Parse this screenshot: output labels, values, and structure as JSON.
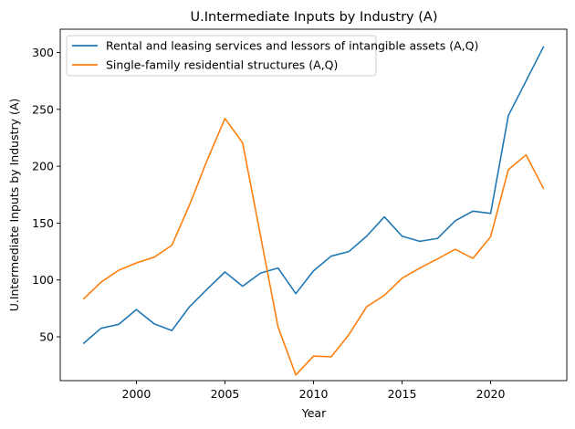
{
  "chart_data": {
    "type": "line",
    "title": "U.Intermediate Inputs by Industry (A)",
    "xlabel": "Year",
    "ylabel": "U.Intermediate Inputs by Industry (A)",
    "xlim": [
      1995.7,
      2024.3
    ],
    "ylim": [
      11.5,
      320.5
    ],
    "xticks": [
      2000,
      2005,
      2010,
      2015,
      2020
    ],
    "yticks": [
      50,
      100,
      150,
      200,
      250,
      300
    ],
    "grid": false,
    "legend_position": "top-left",
    "x": [
      1997,
      1998,
      1999,
      2000,
      2001,
      2002,
      2003,
      2004,
      2005,
      2006,
      2007,
      2008,
      2009,
      2010,
      2011,
      2012,
      2013,
      2014,
      2015,
      2016,
      2017,
      2018,
      2019,
      2020,
      2021,
      2022,
      2023
    ],
    "series": [
      {
        "name": "Rental and leasing services and lessors of intangible assets (A,Q)",
        "color": "#1f77b4",
        "values": [
          44,
          57.5,
          61,
          74,
          61.5,
          55.5,
          76.5,
          92,
          107,
          94.5,
          106,
          110.5,
          88,
          108,
          121,
          125,
          138.5,
          155.5,
          138.5,
          134,
          136.5,
          152,
          160.5,
          158.5,
          244.5,
          275,
          305.5
        ]
      },
      {
        "name": "Single-family residential structures (A,Q)",
        "color": "#ff7f0e",
        "values": [
          83,
          98,
          108.5,
          115,
          120,
          130.5,
          166,
          205.5,
          242,
          220.5,
          139.5,
          58.5,
          16.5,
          33,
          32.5,
          52,
          76.5,
          86.5,
          101.5,
          110.5,
          118.5,
          127,
          119,
          138,
          197,
          210,
          180
        ]
      }
    ]
  }
}
